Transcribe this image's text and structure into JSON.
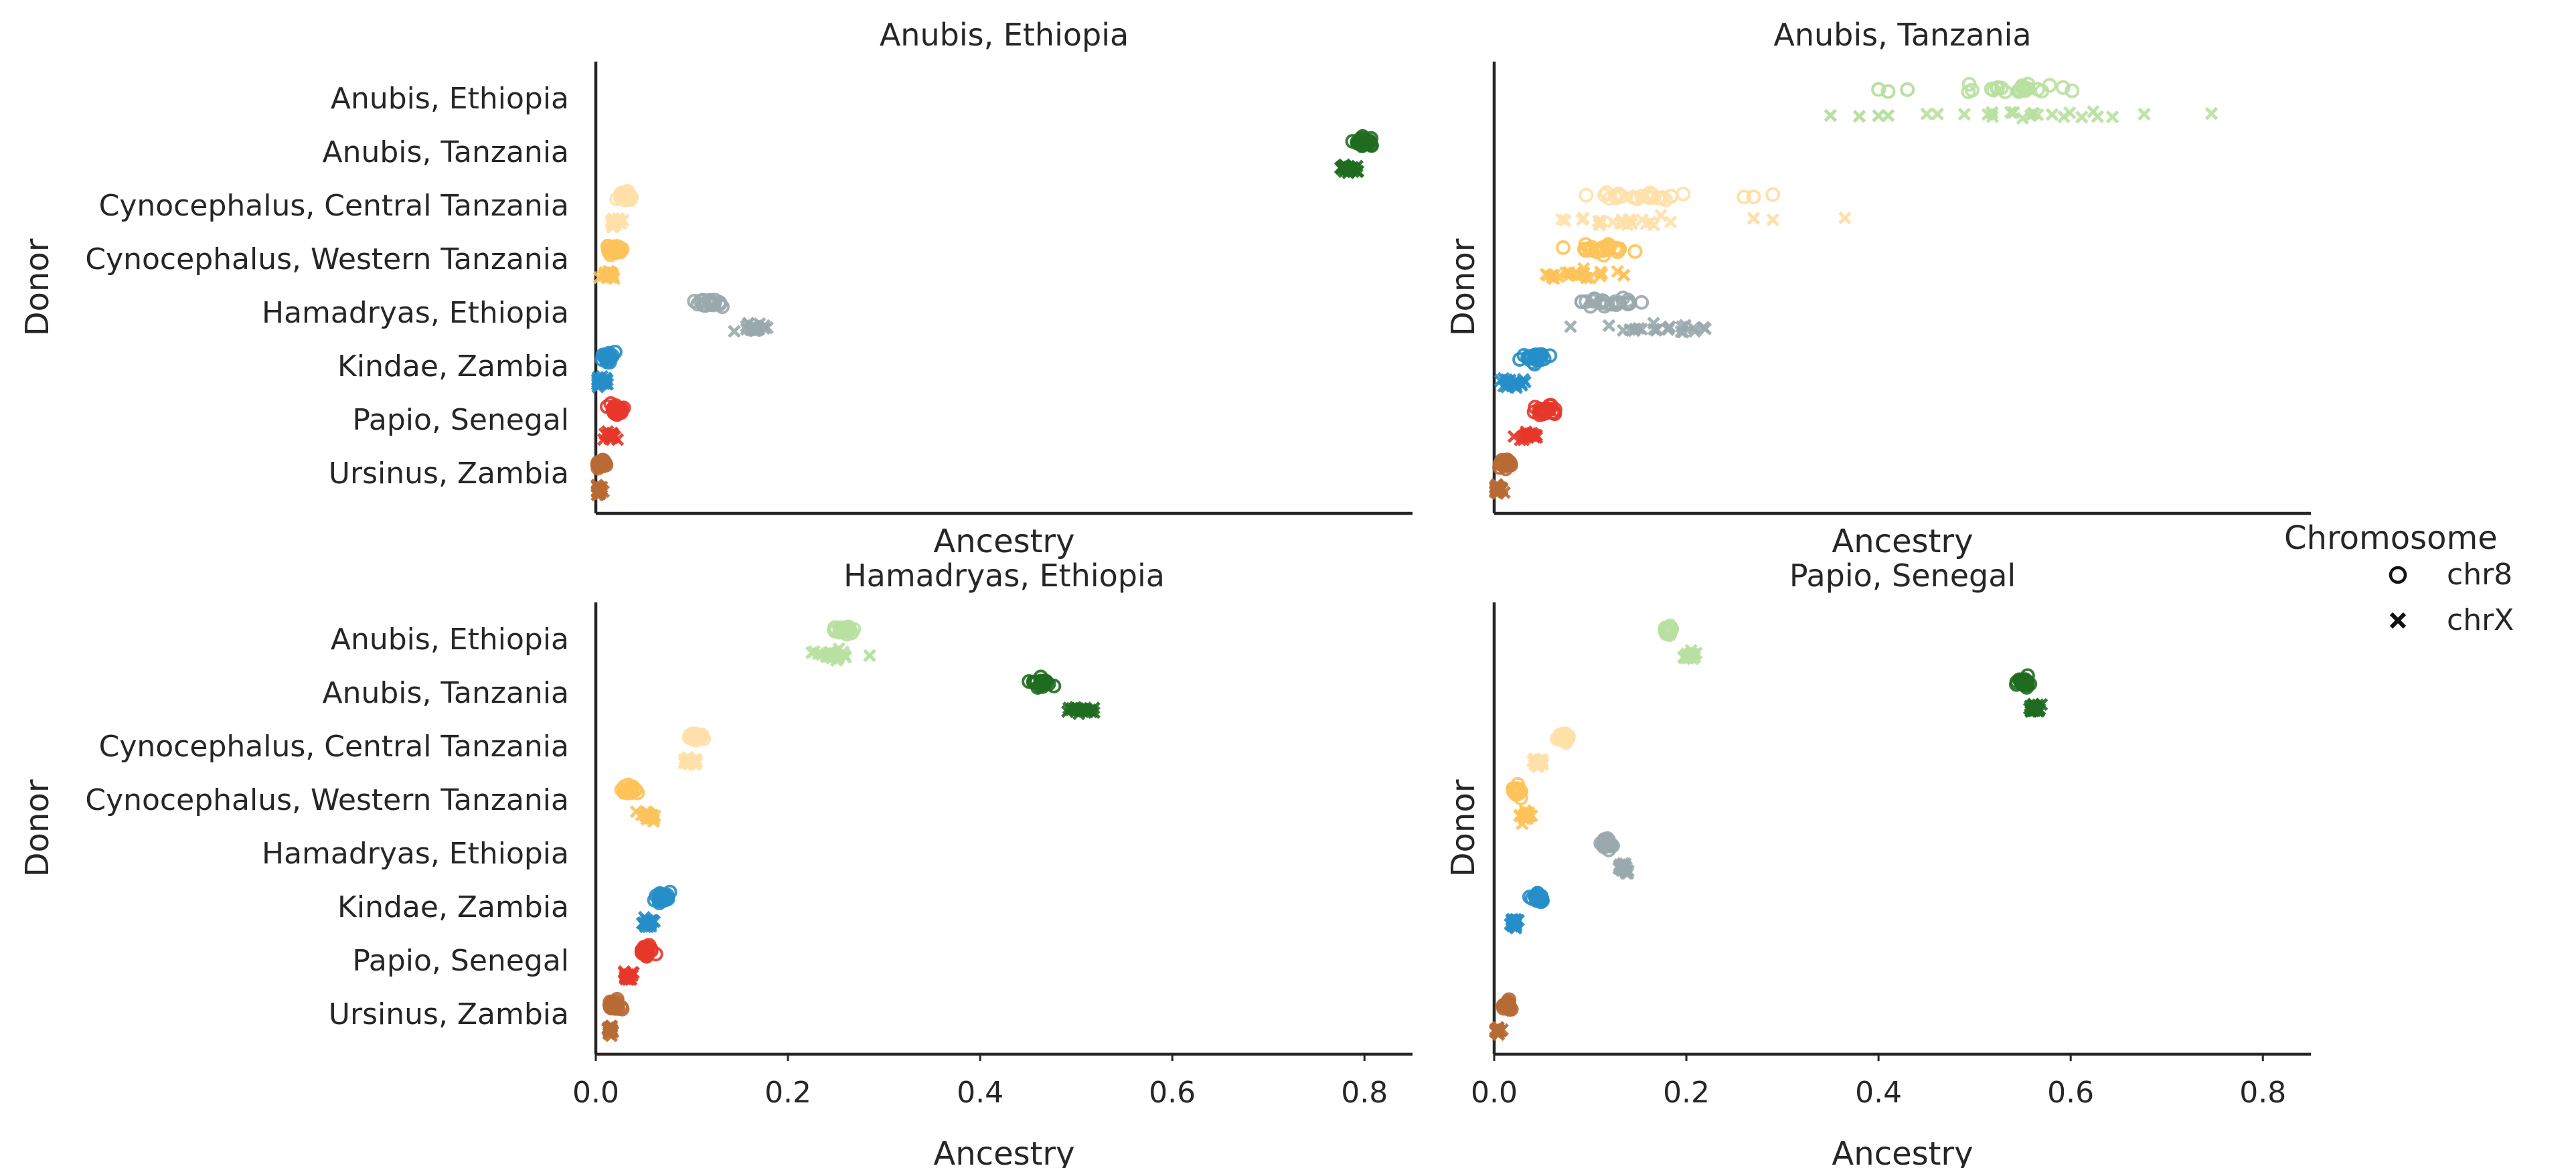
{
  "chart_data": {
    "type": "scatter",
    "layout": "2x2 facet grid, strip/jitter plot",
    "xlim": [
      0,
      0.85
    ],
    "xticks": [
      0.0,
      0.2,
      0.4,
      0.6,
      0.8
    ],
    "xtick_labels": [
      "0.0",
      "0.2",
      "0.4",
      "0.6",
      "0.8"
    ],
    "xlabel": "Ancestry",
    "ylabel": "Donor",
    "grid": false,
    "legend": {
      "title": "Chromosome",
      "placement": "right",
      "items": [
        {
          "label": "chr8",
          "marker": "circle"
        },
        {
          "label": "chrX",
          "marker": "x"
        }
      ]
    },
    "donors": [
      "Anubis, Ethiopia",
      "Anubis, Tanzania",
      "Cynocephalus, Central Tanzania",
      "Cynocephalus, Western Tanzania",
      "Hamadryas, Ethiopia",
      "Kindae, Zambia",
      "Papio, Senegal",
      "Ursinus, Zambia"
    ],
    "donor_colors": [
      "#b8e0a0",
      "#1f6b1f",
      "#ffe0a8",
      "#fdc35a",
      "#9aa9ad",
      "#268ec8",
      "#e6372a",
      "#b86a35"
    ],
    "panels": [
      {
        "title": "Anubis, Ethiopia",
        "ytick_labels_visible": true,
        "xtick_labels_visible": false,
        "chr8_center": [
          null,
          0.8,
          0.03,
          0.02,
          0.12,
          0.012,
          0.022,
          0.006
        ],
        "chr8_spread": [
          0,
          0.006,
          0.004,
          0.004,
          0.008,
          0.003,
          0.003,
          0.002
        ],
        "chrX_center": [
          null,
          0.785,
          0.02,
          0.013,
          0.165,
          0.006,
          0.016,
          0.004
        ],
        "chrX_spread": [
          0,
          0.005,
          0.004,
          0.004,
          0.006,
          0.003,
          0.003,
          0.002
        ]
      },
      {
        "title": "Anubis, Tanzania",
        "ytick_labels_visible": false,
        "xtick_labels_visible": false,
        "chr8_center": [
          0.55,
          null,
          0.14,
          0.11,
          0.12,
          0.04,
          0.05,
          0.012
        ],
        "chr8_spread": [
          0.05,
          0,
          0.03,
          0.015,
          0.014,
          0.008,
          0.008,
          0.004
        ],
        "chrX_center": [
          0.55,
          null,
          0.12,
          0.09,
          0.18,
          0.02,
          0.035,
          0.005
        ],
        "chrX_spread": [
          0.06,
          0,
          0.03,
          0.02,
          0.025,
          0.006,
          0.008,
          0.003
        ],
        "chr8_outliers": [
          {
            "donor": 0,
            "values": [
              0.4,
              0.41,
              0.43
            ]
          },
          {
            "donor": 2,
            "values": [
              0.26,
              0.27,
              0.29
            ]
          }
        ],
        "chrX_outliers": [
          {
            "donor": 0,
            "values": [
              0.35,
              0.38,
              0.4,
              0.41
            ]
          },
          {
            "donor": 2,
            "values": [
              0.27,
              0.29,
              0.365
            ]
          },
          {
            "donor": 3,
            "values": [
              0.135
            ]
          }
        ]
      },
      {
        "title": "Hamadryas, Ethiopia",
        "ytick_labels_visible": true,
        "xtick_labels_visible": true,
        "chr8_center": [
          0.258,
          0.465,
          0.105,
          0.035,
          null,
          0.068,
          0.052,
          0.02
        ],
        "chr8_spread": [
          0.005,
          0.005,
          0.004,
          0.004,
          0,
          0.004,
          0.003,
          0.003
        ],
        "chrX_center": [
          0.245,
          0.505,
          0.098,
          0.055,
          null,
          0.055,
          0.033,
          0.015
        ],
        "chrX_spread": [
          0.006,
          0.007,
          0.004,
          0.004,
          0,
          0.004,
          0.003,
          0.002
        ],
        "chrX_outliers": [
          {
            "donor": 0,
            "values": [
              0.26,
              0.285
            ]
          }
        ]
      },
      {
        "title": "Papio, Senegal",
        "ytick_labels_visible": false,
        "xtick_labels_visible": true,
        "chr8_center": [
          0.182,
          0.55,
          0.072,
          0.024,
          0.118,
          0.044,
          null,
          0.014
        ],
        "chr8_spread": [
          0.002,
          0.003,
          0.003,
          0.003,
          0.003,
          0.003,
          0,
          0.002
        ],
        "chrX_center": [
          0.203,
          0.563,
          0.045,
          0.033,
          0.136,
          0.022,
          null,
          0.004
        ],
        "chrX_spread": [
          0.003,
          0.004,
          0.003,
          0.003,
          0.003,
          0.002,
          0,
          0.002
        ]
      }
    ]
  }
}
